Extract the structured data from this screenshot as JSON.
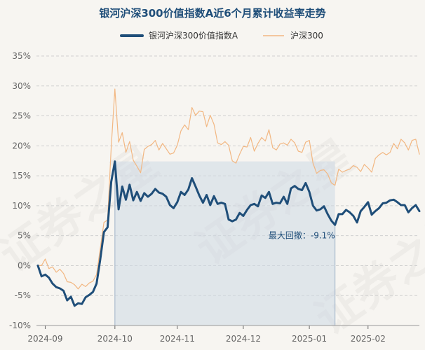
{
  "chart_data": {
    "type": "line",
    "title": "银河沪深300价值指数A近6个月累计收益率走势",
    "ylim": [
      -10,
      35
    ],
    "y_ticks": [
      "-10%",
      "-5%",
      "0%",
      "5%",
      "10%",
      "15%",
      "20%",
      "25%",
      "30%",
      "35%"
    ],
    "x_ticks": [
      "2024-09",
      "2024-10",
      "2024-11",
      "2024-12",
      "2025-01",
      "2025-02"
    ],
    "grid": "horizontal",
    "legend_position": "top",
    "watermark": "证券之星",
    "annotation": {
      "label": "最大回撤：-9.1%"
    },
    "series": [
      {
        "name": "银河沪深300价值指数A",
        "color": "#1f4e79",
        "values": [
          0,
          -1.8,
          -1.5,
          -2,
          -3,
          -3.6,
          -3.8,
          -4.2,
          -5.8,
          -5.2,
          -6.7,
          -6.3,
          -6.4,
          -5.3,
          -4.9,
          -4.4,
          -3,
          1,
          5.6,
          6.4,
          14,
          17.4,
          9.4,
          13.2,
          11,
          13.5,
          10.9,
          12.3,
          10.8,
          12.1,
          11.5,
          12,
          12.8,
          12.2,
          12,
          11.5,
          10.1,
          9.6,
          10.6,
          12.3,
          11.8,
          12.7,
          14.6,
          13.2,
          11.7,
          10.5,
          11.8,
          10.1,
          11.6,
          10.3,
          10.5,
          10.3,
          7.7,
          7.4,
          7.7,
          8.8,
          8.3,
          9.3,
          10.1,
          10.3,
          9.9,
          11.7,
          11.3,
          12.3,
          10.3,
          10.5,
          10.4,
          11.5,
          10.3,
          12.9,
          13.3,
          12.8,
          12.6,
          13.8,
          12.3,
          10,
          9.2,
          9.4,
          9.9,
          8.6,
          7.5,
          6.8,
          8.6,
          8.6,
          9.3,
          8.9,
          8.3,
          7.2,
          9.1,
          9.8,
          10.6,
          8.5,
          9.1,
          9.6,
          10.4,
          10.5,
          10.9,
          11,
          10.6,
          10.1,
          10.1,
          8.9,
          9.6,
          10.1,
          9.1
        ]
      },
      {
        "name": "沪深300",
        "color": "#f2b782",
        "values": [
          0,
          0,
          1.1,
          -0.5,
          -0.2,
          -1.1,
          -0.6,
          -1.3,
          -2.7,
          -2.8,
          -3.2,
          -3.9,
          -3.1,
          -3.5,
          -2.9,
          -2.6,
          -1.5,
          2.8,
          7.2,
          7.6,
          19.8,
          29.5,
          20.6,
          22.2,
          18.9,
          20.7,
          17.6,
          16.6,
          15.5,
          19.4,
          19.9,
          20.2,
          20.9,
          19.3,
          20.4,
          19.5,
          18.6,
          18.8,
          20.1,
          22.5,
          23.5,
          22.7,
          26.4,
          25.1,
          25.8,
          25.7,
          23.2,
          25.1,
          23.6,
          20.5,
          20.2,
          20.7,
          20.1,
          17.5,
          17.1,
          18.6,
          19.9,
          19.8,
          21.4,
          19.1,
          20.4,
          21.4,
          20.8,
          22.7,
          19.7,
          19.3,
          20.3,
          20.5,
          20.1,
          21.1,
          20.5,
          19.1,
          18.9,
          20.6,
          20.9,
          17.1,
          15.4,
          15.9,
          16,
          15.3,
          13.8,
          13.4,
          16.1,
          15.6,
          15.9,
          16.1,
          16.7,
          16.4,
          15.7,
          16.9,
          16.3,
          15.6,
          17.9,
          18.5,
          18.9,
          18.5,
          18.9,
          20.4,
          19.5,
          21.1,
          20.5,
          19.3,
          20.9,
          21.1,
          18.6
        ]
      }
    ]
  }
}
